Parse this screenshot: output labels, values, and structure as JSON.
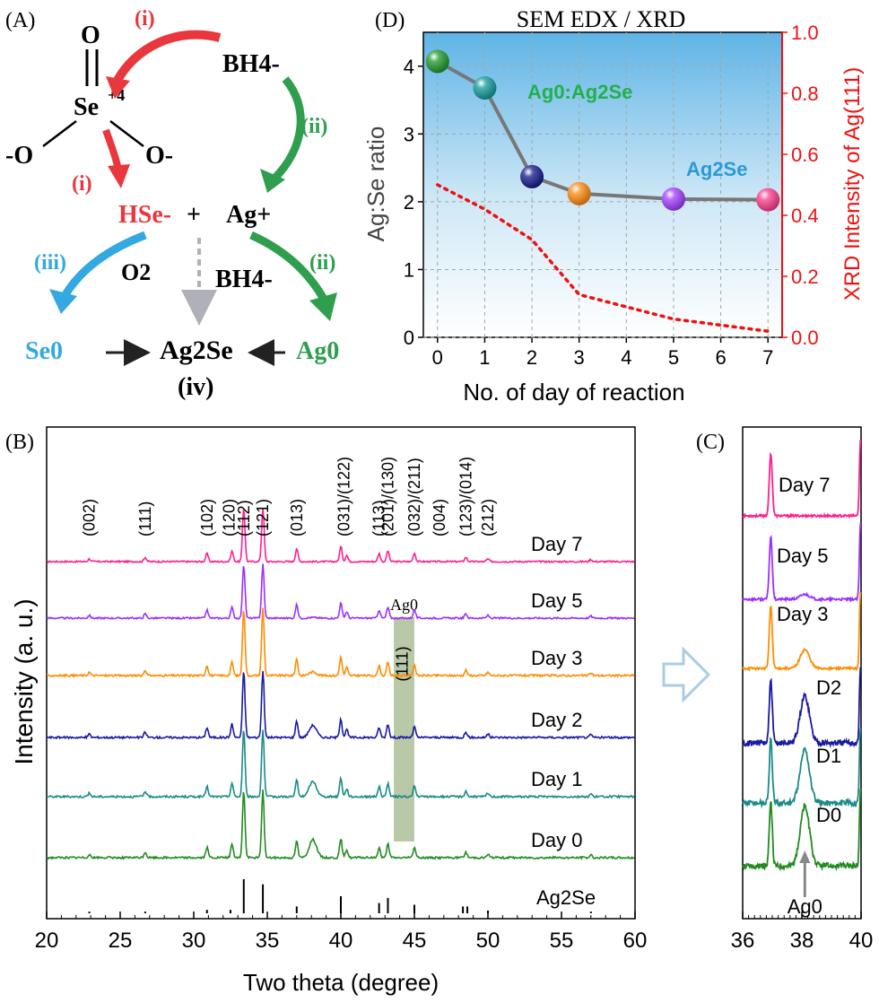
{
  "panels": {
    "A": {
      "label": "(A)",
      "step_i": "(i)",
      "step_ii": "(ii)",
      "step_iii": "(iii)",
      "step_iv": "(iv)",
      "selenite": {
        "O_top": "O",
        "Se": "Se",
        "Se_ox": "+4",
        "O_left": "-O",
        "O_right": "O-"
      },
      "borohydride": "BH4-",
      "HSe": "HSe-",
      "plus": "+",
      "Ag_ion": "Ag+",
      "O2": "O2",
      "Se0": "Se0",
      "Ag0": "Ag0",
      "product": "Ag2Se"
    },
    "B": {
      "label": "(B)"
    },
    "C": {
      "label": "(C)"
    },
    "D": {
      "label": "(D)"
    }
  },
  "colors": {
    "day7": "#ff1f8f",
    "day5": "#9b30ff",
    "day3": "#ff8c00",
    "day2": "#1a1aa0",
    "day1": "#1a8a8a",
    "day0": "#228b22",
    "red_step": "#e8383d",
    "green_step": "#2f9e4f",
    "blue_step": "#34a8e0",
    "xrd_dotted": "#ee1111",
    "highlight_band": "#7f9d5f"
  },
  "chart_data": [
    {
      "panel": "D",
      "type": "line",
      "title": "SEM EDX / XRD",
      "xlabel": "No. of day of reaction",
      "ylabel": "Ag:Se ratio",
      "y2label": "XRD Intensity of Ag(111)",
      "xlim": [
        -0.3,
        7.3
      ],
      "ylim": [
        0,
        4.5
      ],
      "y2lim": [
        0,
        1.0
      ],
      "x_ticks": [
        0,
        1,
        2,
        3,
        4,
        5,
        6,
        7
      ],
      "y_ticks": [
        0,
        1,
        2,
        3,
        4
      ],
      "y2_ticks": [
        "0.0",
        "0.2",
        "0.4",
        "0.6",
        "0.8",
        "1.0"
      ],
      "grid": true,
      "series": [
        {
          "axis": "left",
          "style": "line+markers",
          "x": [
            0,
            1,
            2,
            3,
            5,
            7
          ],
          "y": [
            4.07,
            3.68,
            2.37,
            2.12,
            2.04,
            2.03
          ],
          "marker_colors": [
            "#1f9a2e",
            "#139b9b",
            "#141a8c",
            "#ff8a12",
            "#a33dff",
            "#ff3c8c"
          ]
        },
        {
          "axis": "right",
          "style": "dotted",
          "x": [
            0,
            1,
            2,
            3,
            4,
            5,
            6,
            7
          ],
          "y": [
            0.5,
            0.42,
            0.32,
            0.14,
            0.1,
            0.06,
            0.04,
            0.02
          ]
        }
      ],
      "annotations": [
        "Ag0:Ag2Se",
        "Ag2Se"
      ]
    },
    {
      "panel": "B",
      "type": "line",
      "xlabel": "Two theta (degree)",
      "ylabel": "Intensity (a. u.)",
      "xlim": [
        20,
        60
      ],
      "x_ticks": [
        20,
        25,
        30,
        35,
        40,
        45,
        50,
        55,
        60
      ],
      "series": [
        {
          "name": "Day 7",
          "color": "#ff1f8f",
          "offset": 5
        },
        {
          "name": "Day 5",
          "color": "#9b30ff",
          "offset": 4
        },
        {
          "name": "Day 3",
          "color": "#ff8c00",
          "offset": 3
        },
        {
          "name": "Day 2",
          "color": "#1a1aa0",
          "offset": 2
        },
        {
          "name": "Day 1",
          "color": "#1a8a8a",
          "offset": 1
        },
        {
          "name": "Day 0",
          "color": "#228b22",
          "offset": 0
        }
      ],
      "peaks": [
        {
          "x": 22.9,
          "h": 0.05
        },
        {
          "x": 26.7,
          "h": 0.08
        },
        {
          "x": 30.9,
          "h": 0.15
        },
        {
          "x": 32.6,
          "h": 0.2
        },
        {
          "x": 33.4,
          "h": 1.0
        },
        {
          "x": 34.7,
          "h": 1.0
        },
        {
          "x": 37.0,
          "h": 0.25
        },
        {
          "x": 40.0,
          "h": 0.28
        },
        {
          "x": 40.4,
          "h": 0.12
        },
        {
          "x": 42.6,
          "h": 0.15
        },
        {
          "x": 43.2,
          "h": 0.2
        },
        {
          "x": 45.0,
          "h": 0.16
        },
        {
          "x": 48.5,
          "h": 0.08
        },
        {
          "x": 50.0,
          "h": 0.05
        },
        {
          "x": 57.0,
          "h": 0.04
        }
      ],
      "ag_peaks_by_series": {
        "Day 7": 0,
        "Day 5": 0.03,
        "Day 3": 0.12,
        "Day 2": 0.4,
        "Day 1": 0.5,
        "Day 0": 0.6
      },
      "ag0_peak_x": 38.1,
      "highlight_band": [
        43.6,
        45.0
      ],
      "highlight_label": "Ag0",
      "highlight_miller": "(111)",
      "miller_labels": [
        "(002)",
        "(111)",
        "(102)",
        "(120)",
        "(112)",
        "(121)",
        "(013)",
        "(031)/(122)",
        "(113)",
        "(201)/(130)",
        "(032)/(211)",
        "(004)",
        "(123)/(014)",
        "(212)"
      ],
      "miller_x": [
        22.9,
        26.7,
        30.9,
        32.4,
        33.4,
        34.7,
        37.0,
        40.2,
        42.6,
        43.2,
        45.0,
        46.7,
        48.5,
        50.0
      ],
      "reference": {
        "label": "Ag2Se",
        "sticks": [
          {
            "x": 22.9,
            "h": 0.05
          },
          {
            "x": 26.7,
            "h": 0.05
          },
          {
            "x": 30.9,
            "h": 0.1
          },
          {
            "x": 32.5,
            "h": 0.1
          },
          {
            "x": 33.4,
            "h": 1.0
          },
          {
            "x": 34.7,
            "h": 0.85
          },
          {
            "x": 37.0,
            "h": 0.2
          },
          {
            "x": 40.0,
            "h": 0.5
          },
          {
            "x": 42.6,
            "h": 0.3
          },
          {
            "x": 43.2,
            "h": 0.45
          },
          {
            "x": 45.0,
            "h": 0.25
          },
          {
            "x": 48.3,
            "h": 0.2
          },
          {
            "x": 48.6,
            "h": 0.2
          },
          {
            "x": 50.0,
            "h": 0.08
          },
          {
            "x": 57.0,
            "h": 0.05
          }
        ]
      }
    },
    {
      "panel": "C",
      "type": "line",
      "xlim": [
        36,
        40
      ],
      "x_ticks": [
        36,
        38,
        40
      ],
      "series": [
        {
          "name": "Day 7",
          "color": "#ff1f8f",
          "ag": 0
        },
        {
          "name": "Day 5",
          "color": "#9b30ff",
          "ag": 0.08
        },
        {
          "name": "Day 3",
          "color": "#ff8c00",
          "ag": 0.3
        },
        {
          "name": "D2",
          "color": "#1a1aa0",
          "ag": 0.75
        },
        {
          "name": "D1",
          "color": "#1a8a8a",
          "ag": 0.85
        },
        {
          "name": "D0",
          "color": "#228b22",
          "ag": 0.95
        }
      ],
      "peak_labels": {
        "Ag0": 38.1
      }
    }
  ]
}
